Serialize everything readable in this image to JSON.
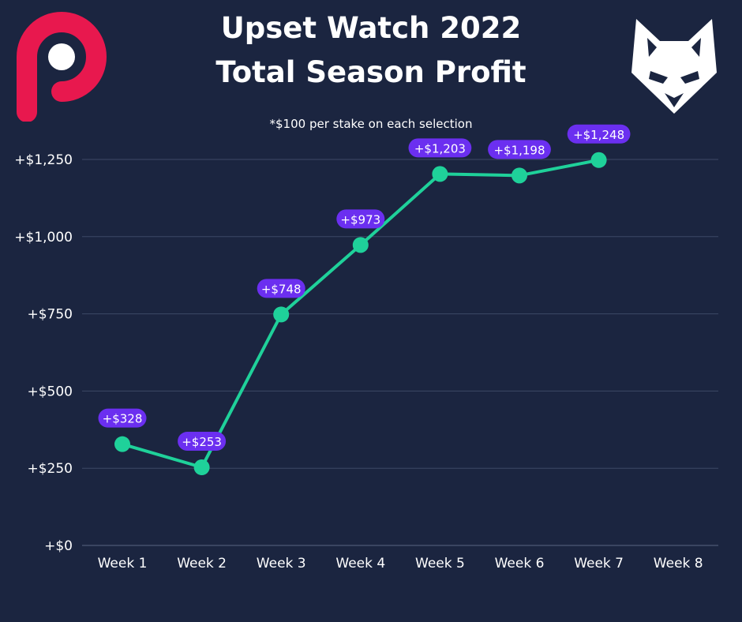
{
  "header": {
    "title_line1": "Upset Watch 2022",
    "title_line2": "Total Season Profit",
    "subtitle": "*$100 per stake on each selection"
  },
  "logos": {
    "left": "p-logo-icon",
    "right": "wolf-logo-icon"
  },
  "colors": {
    "background": "#1b2540",
    "line": "#1fd19a",
    "label_bg": "#6b2ff0",
    "grid": "#3d4866",
    "brand_red": "#e8184e"
  },
  "chart_data": {
    "type": "line",
    "categories": [
      "Week 1",
      "Week 2",
      "Week 3",
      "Week 4",
      "Week 5",
      "Week 6",
      "Week 7",
      "Week 8"
    ],
    "series": [
      {
        "values": [
          328,
          253,
          748,
          973,
          1203,
          1198,
          1248,
          null
        ]
      }
    ],
    "data_labels": [
      "+$328",
      "+$253",
      "+$748",
      "+$973",
      "+$1,203",
      "+$1,198",
      "+$1,248",
      null
    ],
    "yticks": [
      0,
      250,
      500,
      750,
      1000,
      1250
    ],
    "ytick_labels": [
      "+$0",
      "+$250",
      "+$500",
      "+$750",
      "+$1,000",
      "+$1,250"
    ],
    "ylim": [
      0,
      1250
    ],
    "grid": true,
    "title": "Upset Watch 2022 Total Season Profit",
    "xlabel": "",
    "ylabel": ""
  }
}
